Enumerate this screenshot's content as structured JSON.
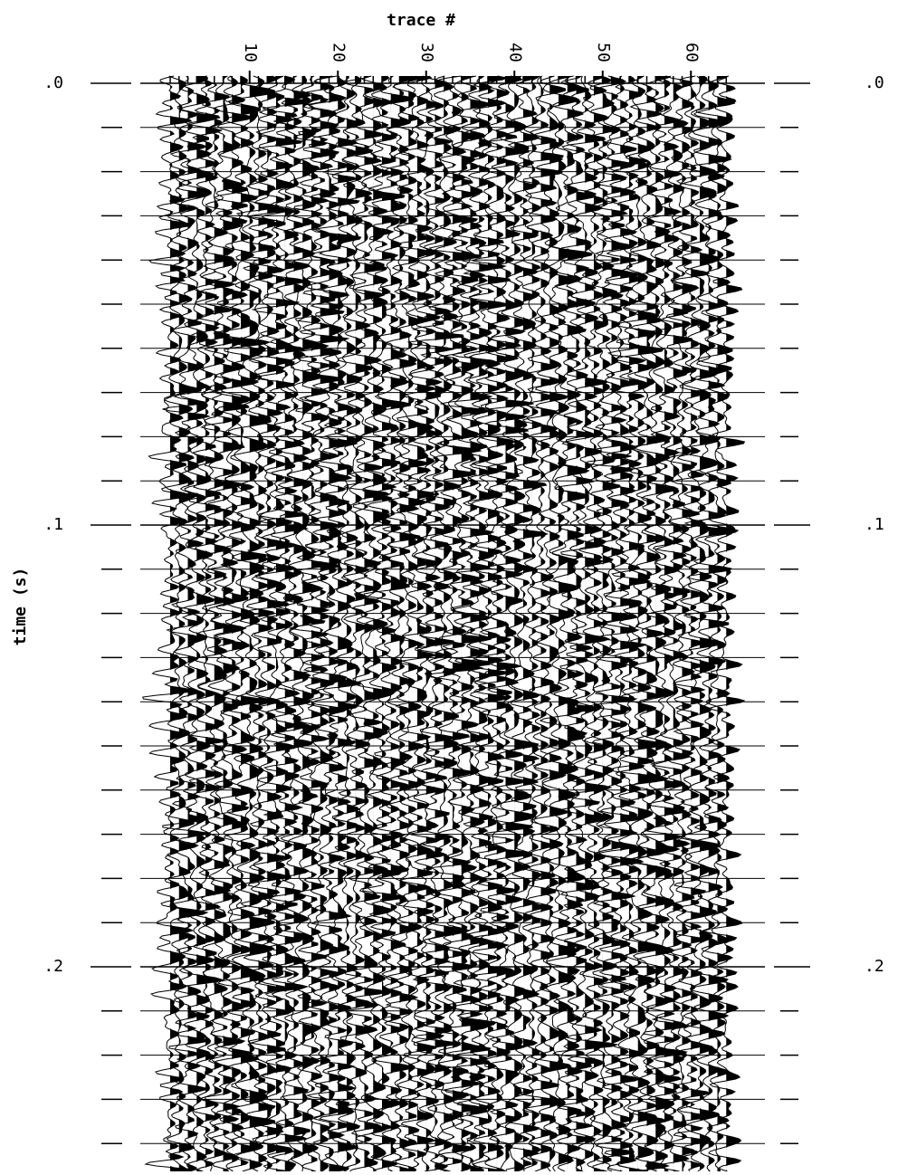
{
  "chart_data": {
    "type": "wiggle",
    "title": "trace #",
    "ylabel": "time (s)",
    "traces": 64,
    "xlim": [
      1,
      65
    ],
    "xticks": [
      10,
      20,
      30,
      40,
      50,
      60
    ],
    "ylim": [
      0,
      0.246
    ],
    "yticks": [
      {
        "value": 0,
        "label": ".0"
      },
      {
        "value": 0.1,
        "label": ".1"
      },
      {
        "value": 0.2,
        "label": ".2"
      }
    ],
    "yminor": [
      0.01,
      0.02,
      0.03,
      0.04,
      0.05,
      0.06,
      0.07,
      0.08,
      0.09,
      0.11,
      0.12,
      0.13,
      0.14,
      0.15,
      0.16,
      0.17,
      0.18,
      0.19,
      0.21,
      0.22,
      0.23,
      0.24
    ],
    "y_reversed": true,
    "grid": true,
    "color": "#000000"
  }
}
